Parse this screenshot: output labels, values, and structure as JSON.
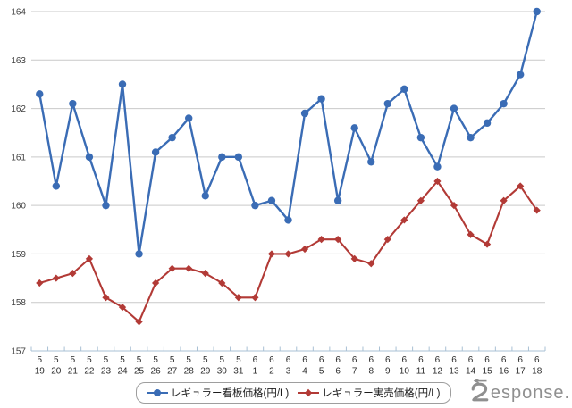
{
  "chart_data": {
    "type": "line",
    "title": "",
    "categories": [
      "5/19",
      "5/20",
      "5/21",
      "5/22",
      "5/23",
      "5/24",
      "5/25",
      "5/26",
      "5/27",
      "5/28",
      "5/29",
      "5/30",
      "5/31",
      "6/1",
      "6/2",
      "6/3",
      "6/4",
      "6/5",
      "6/6",
      "6/7",
      "6/8",
      "6/9",
      "6/10",
      "6/11",
      "6/12",
      "6/13",
      "6/14",
      "6/15",
      "6/16",
      "6/17",
      "6/18"
    ],
    "x_label_style": "two-row month over day",
    "xlabel": "",
    "ylabel": "",
    "ylim": [
      157,
      164
    ],
    "yticks": [
      157,
      158,
      159,
      160,
      161,
      162,
      163,
      164
    ],
    "grid": "horizontal",
    "legend_position": "bottom",
    "series": [
      {
        "name": "レギュラー看板価格(円/L)",
        "marker": "circle",
        "color": "#3a6cb5",
        "values": [
          162.3,
          160.4,
          162.1,
          161.0,
          160.0,
          162.5,
          159.0,
          161.1,
          161.4,
          161.8,
          160.2,
          161.0,
          161.0,
          160.0,
          160.1,
          159.7,
          161.9,
          162.2,
          160.1,
          161.6,
          160.9,
          162.1,
          162.4,
          161.4,
          160.8,
          162.0,
          161.4,
          161.7,
          162.1,
          162.7,
          164.0
        ]
      },
      {
        "name": "レギュラー実売価格(円/L)",
        "marker": "diamond",
        "color": "#b23a36",
        "values": [
          158.4,
          158.5,
          158.6,
          158.9,
          158.1,
          157.9,
          157.6,
          158.4,
          158.7,
          158.7,
          158.6,
          158.4,
          158.1,
          158.1,
          159.0,
          159.0,
          159.1,
          159.3,
          159.3,
          158.9,
          158.8,
          159.3,
          159.7,
          160.1,
          160.5,
          160.0,
          159.4,
          159.2,
          160.1,
          160.4,
          159.9
        ]
      }
    ]
  },
  "watermark": {
    "text": "Response."
  },
  "colors": {
    "gridline": "#c9c9c9",
    "axis_line": "#a9c0d4",
    "y_tick_label": "#3f3f3f",
    "x_tick_label": "#2a2a2a",
    "legend_border": "#9e9e9e",
    "watermark": "#8f8f8f",
    "background": "#ffffff"
  }
}
